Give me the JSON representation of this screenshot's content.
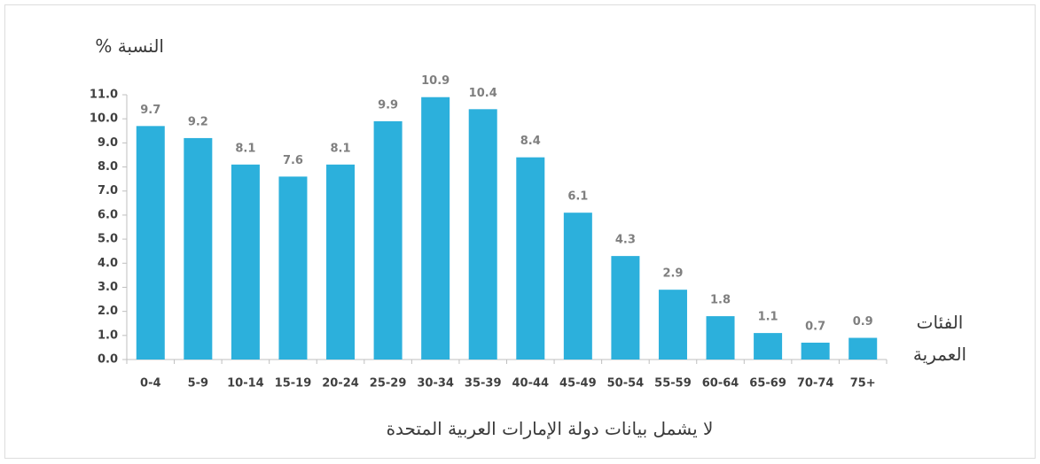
{
  "chart_data": {
    "type": "bar",
    "ylabel": "النسبة %",
    "xlabel": "الفئات العمرية",
    "note": "لا يشمل بيانات دولة الإمارات العربية المتحدة",
    "categories": [
      "0-4",
      "5-9",
      "10-14",
      "15-19",
      "20-24",
      "25-29",
      "30-34",
      "35-39",
      "40-44",
      "45-49",
      "50-54",
      "55-59",
      "60-64",
      "65-69",
      "70-74",
      "75+"
    ],
    "values": [
      9.7,
      9.2,
      8.1,
      7.6,
      8.1,
      9.9,
      10.9,
      10.4,
      8.4,
      6.1,
      4.3,
      2.9,
      1.8,
      1.1,
      0.7,
      0.9
    ],
    "color": "#2cb0dc",
    "ylim": [
      0,
      11
    ],
    "yticks": [
      {
        "value": 0,
        "label": "0.0"
      },
      {
        "value": 1,
        "label": "1.0"
      },
      {
        "value": 2,
        "label": "2.0"
      },
      {
        "value": 3,
        "label": "3.0"
      },
      {
        "value": 4,
        "label": "4.0"
      },
      {
        "value": 5,
        "label": "5.0"
      },
      {
        "value": 6,
        "label": "6.0"
      },
      {
        "value": 7,
        "label": "7.0"
      },
      {
        "value": 8,
        "label": "8.0"
      },
      {
        "value": 9,
        "label": "9.0"
      },
      {
        "value": 10,
        "label": "10.0"
      },
      {
        "value": 11,
        "label": "11.0"
      }
    ]
  }
}
